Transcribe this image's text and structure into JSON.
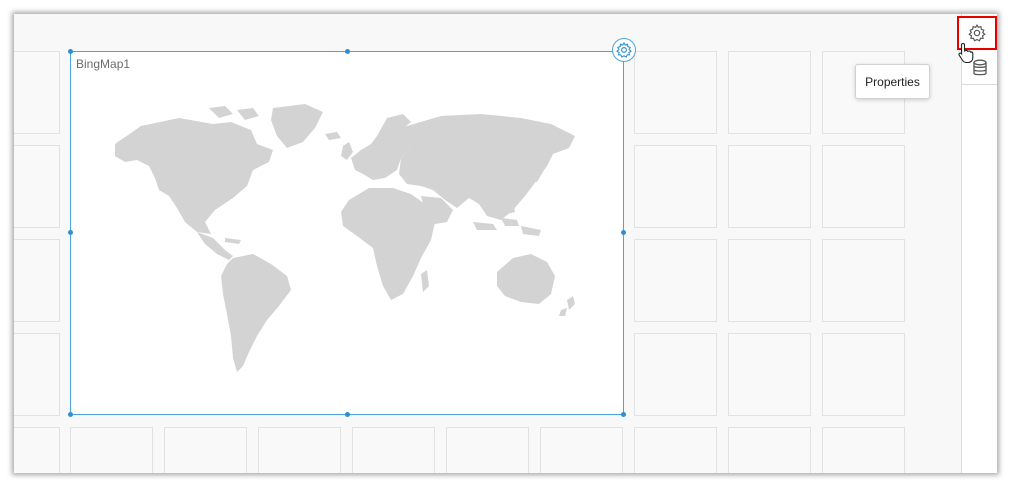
{
  "widget": {
    "title": "BingMap1",
    "settings_icon": "gear-icon",
    "map_fill": "#d3d3d3"
  },
  "right_panel": {
    "properties_icon": "gear-icon",
    "data_source_icon": "database-icon",
    "tooltip": "Properties"
  },
  "colors": {
    "selection": "#4aa6da",
    "handle": "#2f8fd0",
    "highlight": "#e60000"
  }
}
